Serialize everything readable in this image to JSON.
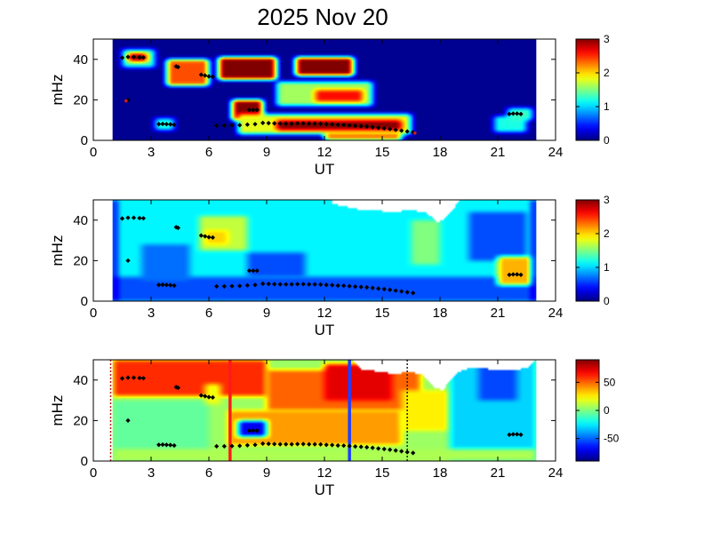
{
  "title": "2025 Nov 20",
  "chart_data": [
    {
      "type": "heatmap",
      "panel": "top",
      "xlabel": "UT",
      "ylabel": "mHz",
      "xlim": [
        0,
        24
      ],
      "ylim": [
        0,
        50
      ],
      "xticks": [
        "0",
        "3",
        "6",
        "9",
        "12",
        "15",
        "18",
        "21",
        "24"
      ],
      "yticks": [
        "0",
        "20",
        "40"
      ],
      "colorbar": {
        "range": [
          0,
          3
        ],
        "ticks": [
          "0",
          "1",
          "2",
          "3"
        ],
        "colormap": "jet"
      },
      "data_span_ut": [
        1,
        23
      ],
      "background_value": 0.05,
      "features": [
        {
          "x0": 1.5,
          "x1": 3.2,
          "y0": 36,
          "y1": 45,
          "v": 1.3
        },
        {
          "x0": 1.8,
          "x1": 2.8,
          "y0": 39,
          "y1": 43,
          "v": 3.0
        },
        {
          "x0": 3.8,
          "x1": 6.0,
          "y0": 27,
          "y1": 40,
          "v": 2.4
        },
        {
          "x0": 6.5,
          "x1": 9.5,
          "y0": 30,
          "y1": 41,
          "v": 3.0
        },
        {
          "x0": 10.5,
          "x1": 13.5,
          "y0": 32,
          "y1": 41,
          "v": 3.0
        },
        {
          "x0": 9.5,
          "x1": 14.5,
          "y0": 17,
          "y1": 29,
          "v": 1.6
        },
        {
          "x0": 11.5,
          "x1": 14.0,
          "y0": 19,
          "y1": 25,
          "v": 2.6
        },
        {
          "x0": 7.2,
          "x1": 8.8,
          "y0": 10,
          "y1": 20,
          "v": 3.0
        },
        {
          "x0": 7.5,
          "x1": 16.5,
          "y0": 3,
          "y1": 13,
          "v": 1.8
        },
        {
          "x0": 9.5,
          "x1": 16.0,
          "y0": 5,
          "y1": 10,
          "v": 3.0
        },
        {
          "x0": 12.0,
          "x1": 16.0,
          "y0": 0,
          "y1": 4,
          "v": 2.3
        },
        {
          "x0": 3.2,
          "x1": 4.2,
          "y0": 5,
          "y1": 11,
          "v": 1.2
        },
        {
          "x0": 20.8,
          "x1": 22.5,
          "y0": 4,
          "y1": 12,
          "v": 1.2
        },
        {
          "x0": 21.5,
          "x1": 22.8,
          "y0": 10,
          "y1": 16,
          "v": 1.3
        }
      ]
    },
    {
      "type": "heatmap",
      "panel": "middle",
      "xlabel": "UT",
      "ylabel": "mHz",
      "xlim": [
        0,
        24
      ],
      "ylim": [
        0,
        50
      ],
      "xticks": [
        "0",
        "3",
        "6",
        "9",
        "12",
        "15",
        "18",
        "21",
        "24"
      ],
      "yticks": [
        "0",
        "20",
        "40"
      ],
      "colorbar": {
        "range": [
          0,
          3
        ],
        "ticks": [
          "0",
          "1",
          "2",
          "3"
        ],
        "colormap": "jet"
      },
      "data_span_ut": [
        1,
        23
      ],
      "background_value": 1.1,
      "features": [
        {
          "x0": 1.0,
          "x1": 23.0,
          "y0": 0,
          "y1": 12,
          "v": 0.6
        },
        {
          "x0": 5.5,
          "x1": 8.0,
          "y0": 25,
          "y1": 42,
          "v": 1.7
        },
        {
          "x0": 5.8,
          "x1": 7.0,
          "y0": 28,
          "y1": 35,
          "v": 2.0
        },
        {
          "x0": 2.5,
          "x1": 5.0,
          "y0": 10,
          "y1": 28,
          "v": 0.7
        },
        {
          "x0": 8.0,
          "x1": 11.0,
          "y0": 12,
          "y1": 24,
          "v": 0.6
        },
        {
          "x0": 19.5,
          "x1": 22.5,
          "y0": 20,
          "y1": 44,
          "v": 0.6
        },
        {
          "x0": 21.0,
          "x1": 22.8,
          "y0": 8,
          "y1": 22,
          "v": 2.1
        },
        {
          "x0": 16.5,
          "x1": 18.0,
          "y0": 18,
          "y1": 40,
          "v": 1.5
        },
        {
          "x0": 1.0,
          "x1": 1.2,
          "y0": 0,
          "y1": 50,
          "v": 0.0
        },
        {
          "x0": 22.8,
          "x1": 23.0,
          "y0": 0,
          "y1": 50,
          "v": 0.0
        }
      ],
      "blank_region": [
        [
          19.0,
          50
        ],
        [
          18.6,
          44
        ],
        [
          18.2,
          40
        ],
        [
          17.9,
          39
        ],
        [
          17.5,
          42
        ],
        [
          17.2,
          44
        ],
        [
          16.5,
          45
        ],
        [
          15.5,
          44
        ],
        [
          15,
          44.5
        ],
        [
          14,
          45
        ],
        [
          12.4,
          48
        ],
        [
          12.4,
          50
        ]
      ]
    },
    {
      "type": "heatmap",
      "panel": "bottom",
      "xlabel": "UT",
      "ylabel": "mHz",
      "xlim": [
        0,
        24
      ],
      "ylim": [
        0,
        50
      ],
      "xticks": [
        "0",
        "3",
        "6",
        "9",
        "12",
        "15",
        "18",
        "21",
        "24"
      ],
      "yticks": [
        "0",
        "20",
        "40"
      ],
      "colorbar": {
        "range": [
          -90,
          90
        ],
        "ticks": [
          "50",
          "0",
          "-50"
        ],
        "colormap": "jet"
      },
      "data_span_ut": [
        1,
        23
      ],
      "background_value": 5,
      "features": [
        {
          "x0": 1.0,
          "x1": 9.0,
          "y0": 32,
          "y1": 50,
          "v": 60
        },
        {
          "x0": 9.0,
          "x1": 17.0,
          "y0": 25,
          "y1": 45,
          "v": 50
        },
        {
          "x0": 12.0,
          "x1": 15.5,
          "y0": 30,
          "y1": 48,
          "v": 72
        },
        {
          "x0": 7.0,
          "x1": 16.0,
          "y0": 8,
          "y1": 25,
          "v": 40
        },
        {
          "x0": 16.0,
          "x1": 18.5,
          "y0": 15,
          "y1": 35,
          "v": 25
        },
        {
          "x0": 18.5,
          "x1": 23.0,
          "y0": 0,
          "y1": 50,
          "v": -30
        },
        {
          "x0": 20.0,
          "x1": 22.0,
          "y0": 30,
          "y1": 48,
          "v": -55
        },
        {
          "x0": 1.0,
          "x1": 6.0,
          "y0": 0,
          "y1": 30,
          "v": -5
        },
        {
          "x0": 7.5,
          "x1": 9.0,
          "y0": 12,
          "y1": 20,
          "v": -70
        },
        {
          "x0": 5.8,
          "x1": 6.6,
          "y0": 28,
          "y1": 38,
          "v": 20
        },
        {
          "x0": 1.0,
          "x1": 23.0,
          "y0": 0,
          "y1": 6,
          "v": 8
        }
      ],
      "blank_region": [
        [
          23.0,
          50
        ],
        [
          22.5,
          46
        ],
        [
          21.5,
          44.5
        ],
        [
          20.5,
          45.5
        ],
        [
          19.5,
          46
        ],
        [
          19,
          44
        ],
        [
          18.5,
          40
        ],
        [
          18.2,
          35
        ],
        [
          17.8,
          36
        ],
        [
          17.4,
          40
        ],
        [
          17.0,
          43
        ],
        [
          16.5,
          44
        ],
        [
          15.5,
          43
        ],
        [
          15.2,
          44
        ],
        [
          14,
          45
        ],
        [
          13.7,
          47
        ],
        [
          13.5,
          50
        ]
      ],
      "markers": [
        {
          "ut": 7.1,
          "color": "#ff1a1a",
          "style": "solid"
        },
        {
          "ut": 13.3,
          "color": "#1f3fff",
          "style": "solid"
        },
        {
          "ut": 0.9,
          "color": "#b01818",
          "style": "dotted"
        },
        {
          "ut": 16.3,
          "color": "#222222",
          "style": "dotted"
        }
      ]
    }
  ],
  "trace": [
    [
      1.5,
      40.8
    ],
    [
      1.8,
      41.2
    ],
    [
      2.1,
      41.2
    ],
    [
      2.4,
      41.0
    ],
    [
      2.6,
      40.9
    ],
    [
      4.3,
      36.5
    ],
    [
      4.4,
      36.2
    ],
    [
      5.6,
      32.4
    ],
    [
      5.8,
      32.0
    ],
    [
      6.0,
      31.6
    ],
    [
      6.2,
      31.4
    ],
    [
      1.8,
      20.0
    ],
    [
      3.4,
      8.0
    ],
    [
      3.6,
      8.1
    ],
    [
      3.8,
      8.0
    ],
    [
      4.0,
      7.9
    ],
    [
      4.2,
      7.7
    ],
    [
      6.4,
      7.3
    ],
    [
      6.8,
      7.3
    ],
    [
      7.2,
      7.4
    ],
    [
      7.6,
      7.5
    ],
    [
      8.0,
      7.8
    ],
    [
      8.4,
      8.0
    ],
    [
      8.1,
      15.0
    ],
    [
      8.3,
      15.0
    ],
    [
      8.5,
      15.0
    ],
    [
      8.8,
      8.6
    ],
    [
      9.1,
      8.5
    ],
    [
      9.4,
      8.4
    ],
    [
      9.7,
      8.3
    ],
    [
      10.0,
      8.3
    ],
    [
      10.3,
      8.3
    ],
    [
      10.6,
      8.4
    ],
    [
      10.9,
      8.4
    ],
    [
      11.2,
      8.3
    ],
    [
      11.5,
      8.3
    ],
    [
      11.8,
      8.2
    ],
    [
      12.1,
      8.0
    ],
    [
      12.4,
      7.9
    ],
    [
      12.7,
      7.7
    ],
    [
      13.0,
      7.6
    ],
    [
      13.3,
      7.4
    ],
    [
      13.6,
      7.2
    ],
    [
      13.9,
      7.0
    ],
    [
      14.2,
      6.8
    ],
    [
      14.5,
      6.5
    ],
    [
      14.8,
      6.2
    ],
    [
      15.1,
      5.9
    ],
    [
      15.4,
      5.6
    ],
    [
      15.7,
      5.2
    ],
    [
      16.0,
      4.8
    ],
    [
      16.3,
      4.4
    ],
    [
      16.6,
      4.0
    ],
    [
      21.6,
      13.0
    ],
    [
      21.8,
      13.2
    ],
    [
      22.0,
      13.2
    ],
    [
      22.2,
      13.0
    ]
  ]
}
